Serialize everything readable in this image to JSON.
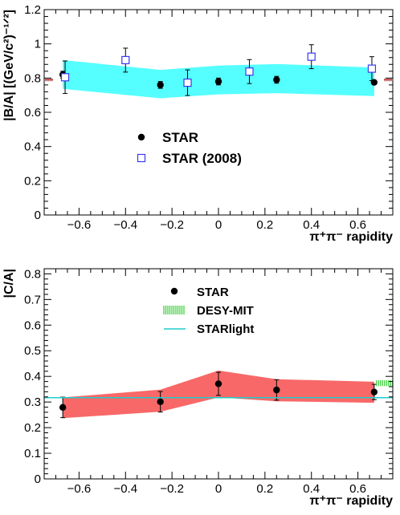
{
  "chart_data": [
    {
      "type": "scatter",
      "panel": "top",
      "xlabel": "π⁺π⁻ rapidity",
      "ylabel": "|B/A| [(GeV/c²)⁻¹ᐟ²]",
      "xlim": [
        -0.75,
        0.75
      ],
      "ylim": [
        0,
        1.2
      ],
      "xticks": [
        -0.6,
        -0.4,
        -0.2,
        0,
        0.2,
        0.4,
        0.6
      ],
      "xtick_labels": [
        "−0.6",
        "−0.4",
        "−0.2",
        "0",
        "0.2",
        "0.4",
        "0.6"
      ],
      "yticks": [
        0,
        0.2,
        0.4,
        0.6,
        0.8,
        1,
        1.2
      ],
      "ytick_labels": [
        "0",
        "0.2",
        "0.4",
        "0.6",
        "0.8",
        "1",
        "1.2"
      ],
      "series": [
        {
          "name": "STAR",
          "marker": "filled-circle",
          "color": "#000000",
          "x": [
            -0.67,
            -0.25,
            0.0,
            0.25,
            0.67
          ],
          "y": [
            0.82,
            0.76,
            0.78,
            0.79,
            0.775
          ],
          "yerr": [
            0.02,
            0.02,
            0.02,
            0.02,
            0.01
          ]
        },
        {
          "name": "STAR (2008)",
          "marker": "open-square",
          "color": "#3a3aee",
          "x": [
            -0.66,
            -0.4,
            -0.133,
            0.133,
            0.4,
            0.66
          ],
          "y": [
            0.805,
            0.905,
            0.773,
            0.838,
            0.925,
            0.855
          ],
          "yerr": [
            0.095,
            0.07,
            0.075,
            0.07,
            0.07,
            0.07
          ]
        }
      ],
      "bands": [
        {
          "color": "#55ffff",
          "x": [
            -0.67,
            -0.25,
            0.0,
            0.25,
            0.67
          ],
          "upper": [
            0.905,
            0.848,
            0.873,
            0.882,
            0.862
          ],
          "lower": [
            0.737,
            0.682,
            0.705,
            0.712,
            0.695
          ]
        }
      ],
      "edge_markers": {
        "color": "#cc2222",
        "y": 0.79
      }
    },
    {
      "type": "scatter",
      "panel": "bottom",
      "xlabel": "π⁺π⁻ rapidity",
      "ylabel": "|C/A|",
      "xlim": [
        -0.75,
        0.75
      ],
      "ylim": [
        0,
        0.82
      ],
      "xticks": [
        -0.6,
        -0.4,
        -0.2,
        0,
        0.2,
        0.4,
        0.6
      ],
      "xtick_labels": [
        "−0.6",
        "−0.4",
        "−0.2",
        "0",
        "0.2",
        "0.4",
        "0.6"
      ],
      "yticks": [
        0,
        0.1,
        0.2,
        0.3,
        0.4,
        0.5,
        0.6,
        0.7,
        0.8
      ],
      "ytick_labels": [
        "0",
        "0.1",
        "0.2",
        "0.3",
        "0.4",
        "0.5",
        "0.6",
        "0.7",
        "0.8"
      ],
      "series": [
        {
          "name": "STAR",
          "marker": "filled-circle",
          "color": "#000000",
          "x": [
            -0.67,
            -0.25,
            0.0,
            0.25,
            0.67
          ],
          "y": [
            0.279,
            0.301,
            0.371,
            0.347,
            0.339
          ],
          "yerr": [
            0.04,
            0.04,
            0.045,
            0.04,
            0.03
          ]
        },
        {
          "name": "DESY-MIT",
          "marker": "hatched-band",
          "color": "#33cc33",
          "x_range": [
            0.68,
            0.75
          ],
          "y_range": [
            0.362,
            0.385
          ]
        },
        {
          "name": "STARlight",
          "marker": "line",
          "color": "#22cccc",
          "y": 0.317
        }
      ],
      "bands": [
        {
          "color": "#f86868",
          "x": [
            -0.67,
            -0.25,
            0.0,
            0.25,
            0.67
          ],
          "upper": [
            0.318,
            0.348,
            0.423,
            0.389,
            0.379
          ],
          "lower": [
            0.237,
            0.262,
            0.318,
            0.303,
            0.297
          ]
        }
      ]
    }
  ]
}
